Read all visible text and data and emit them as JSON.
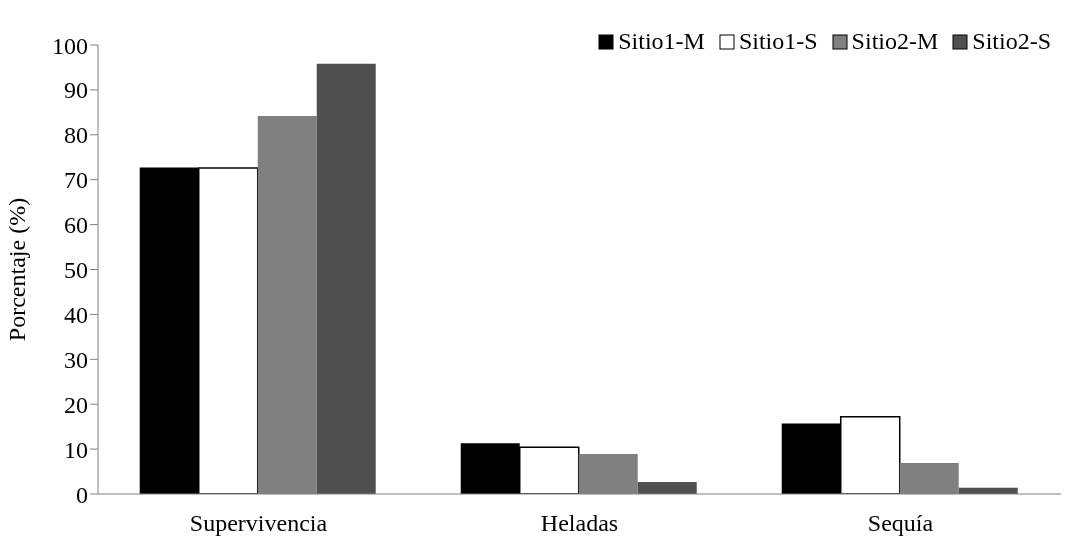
{
  "chart_data": {
    "type": "bar",
    "ylabel": "Porcentaje (%)",
    "categories": [
      "Supervivencia",
      "Heladas",
      "Sequía"
    ],
    "series": [
      {
        "name": "Sitio1-M",
        "color": "#000000",
        "values": [
          72.7,
          11.3,
          15.7
        ]
      },
      {
        "name": "Sitio1-S",
        "color": "#ffffff",
        "values": [
          72.6,
          10.4,
          17.2
        ]
      },
      {
        "name": "Sitio2-M",
        "color": "#808080",
        "values": [
          84.2,
          8.9,
          6.9
        ]
      },
      {
        "name": "Sitio2-S",
        "color": "#505050",
        "values": [
          95.8,
          2.7,
          1.4
        ]
      }
    ],
    "ylim": [
      0,
      100
    ],
    "yticks": [
      0,
      10,
      20,
      30,
      40,
      50,
      60,
      70,
      80,
      90,
      100
    ],
    "grid": false,
    "legend": "top right"
  }
}
